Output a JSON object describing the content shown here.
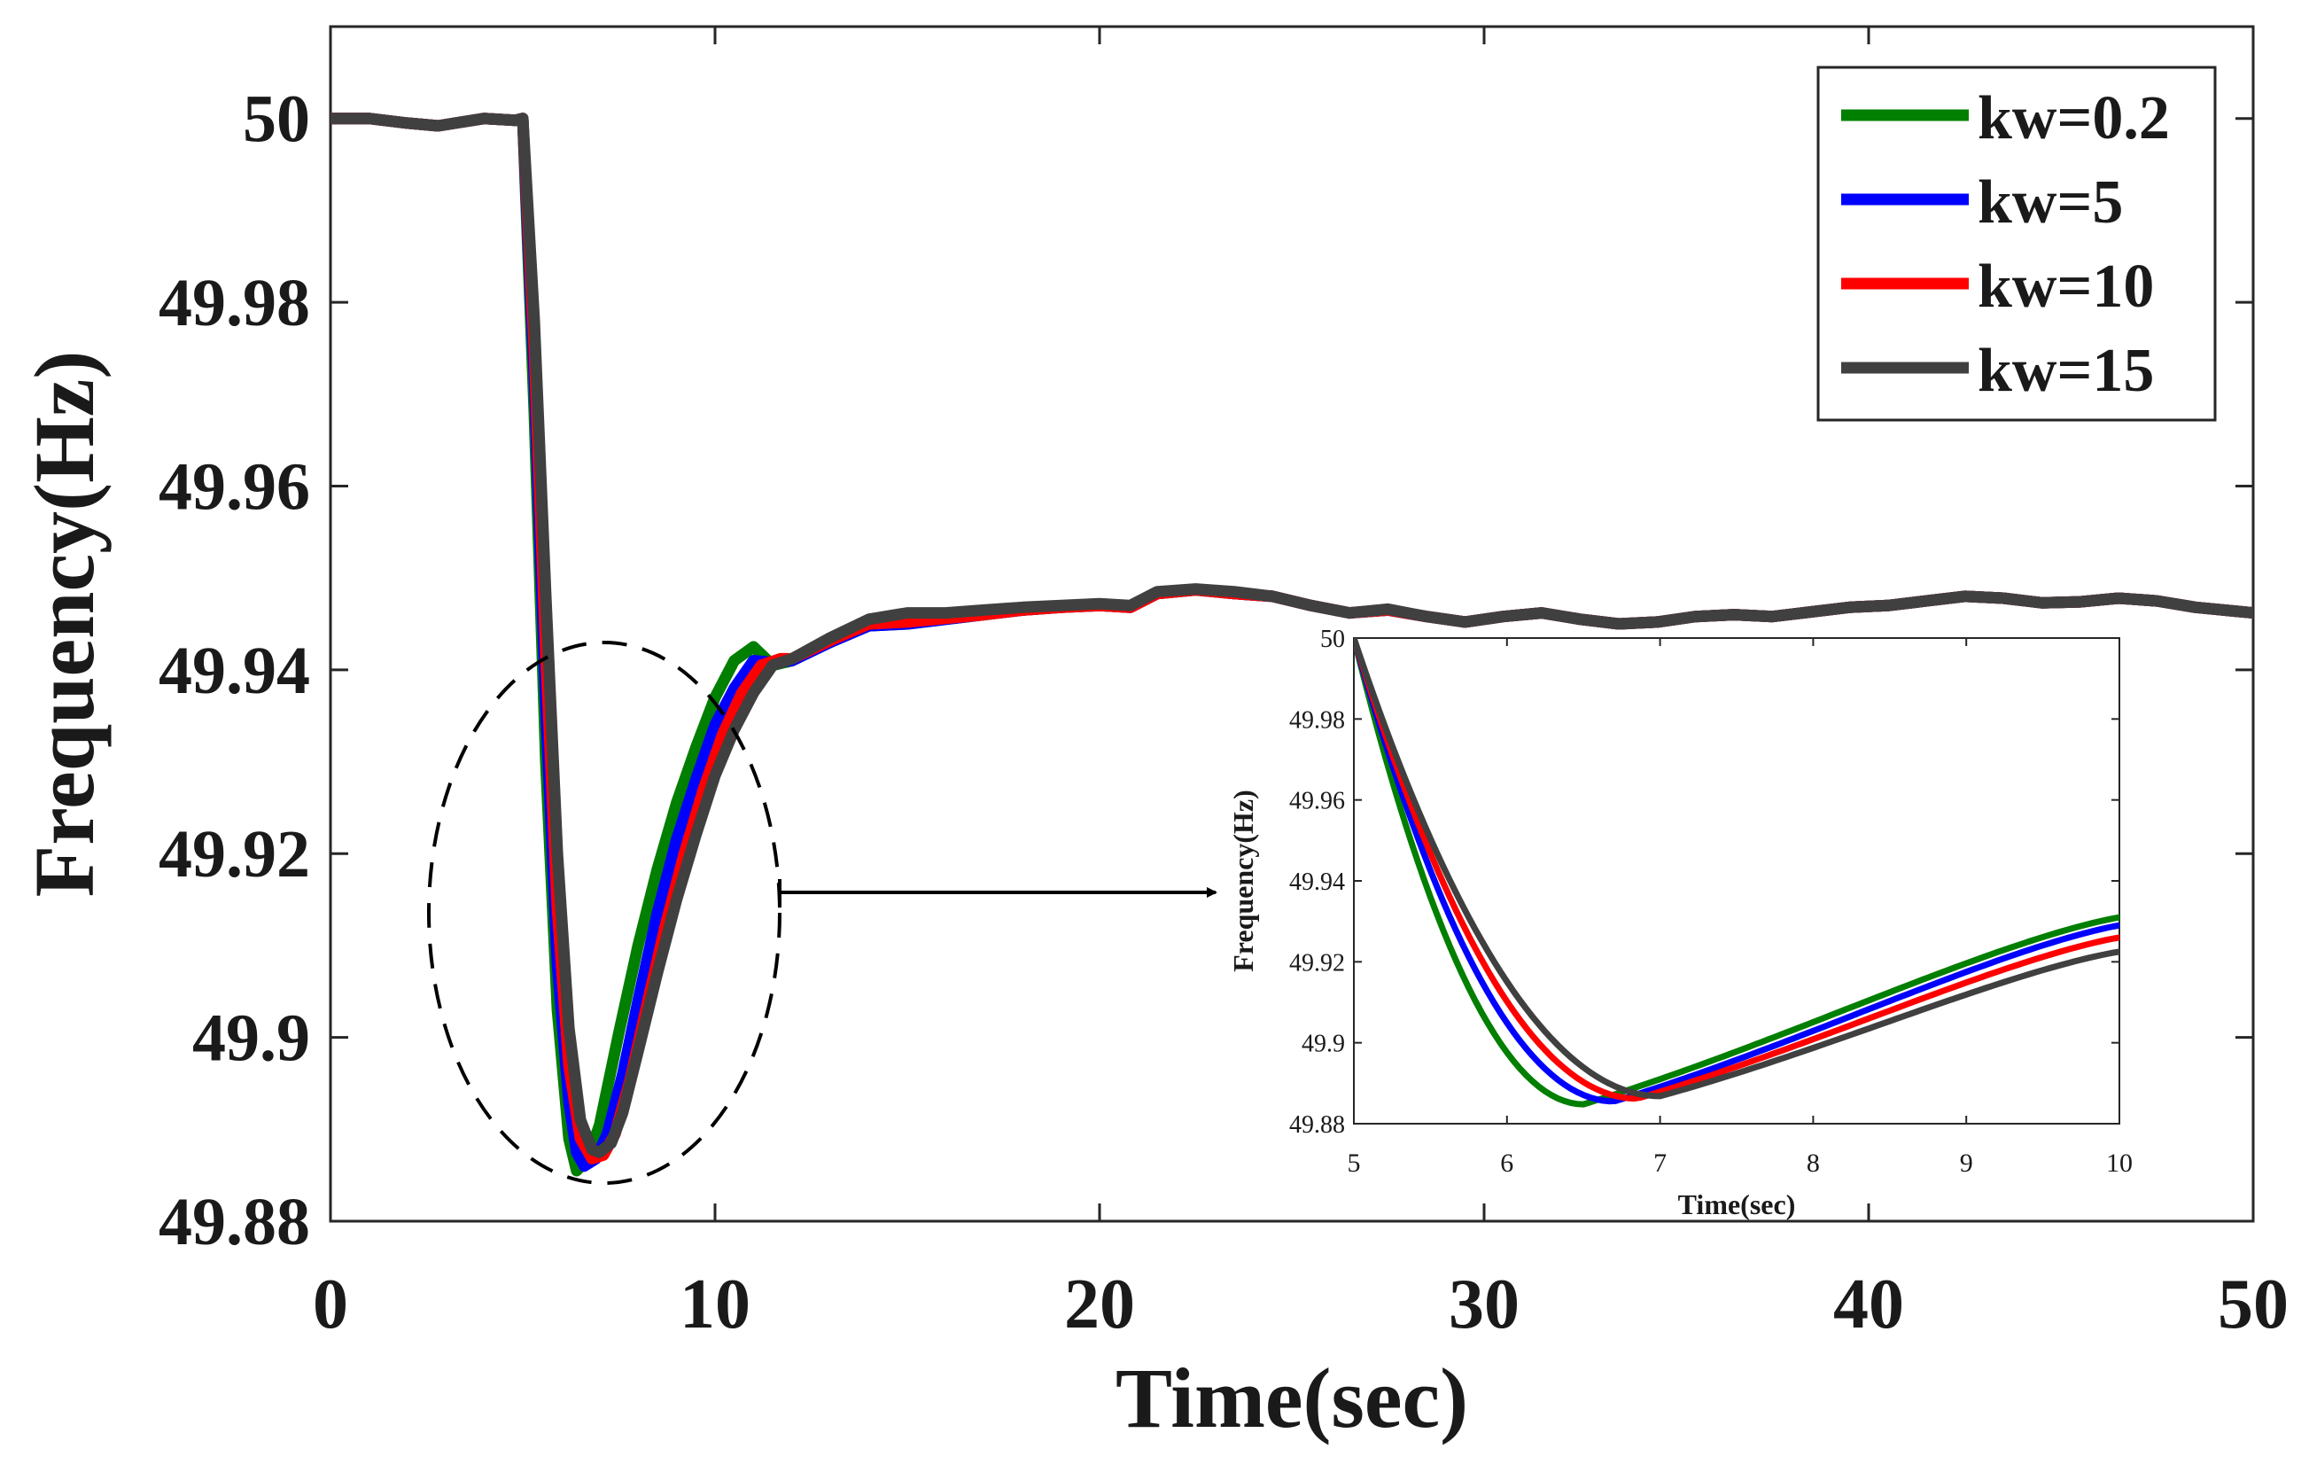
{
  "chart_data": [
    {
      "id": "main",
      "type": "line",
      "title": "",
      "xlabel": "Time(sec)",
      "ylabel": "Frequency(Hz)",
      "xlim": [
        0,
        50
      ],
      "ylim": [
        49.88,
        50.01
      ],
      "xticks": [
        0,
        10,
        20,
        30,
        40,
        50
      ],
      "yticks": [
        49.88,
        49.9,
        49.92,
        49.94,
        49.96,
        49.98,
        50
      ],
      "xtick_labels": [
        "0",
        "10",
        "20",
        "30",
        "40",
        "50"
      ],
      "ytick_labels": [
        "49.88",
        "49.9",
        "49.92",
        "49.94",
        "49.96",
        "49.98",
        "50"
      ],
      "legend_position": "top-right",
      "series": [
        {
          "name": "kw=0.2",
          "color": "#007f00",
          "dip_time": 6.4,
          "dip_value": 49.8855,
          "x": [
            0,
            1,
            2,
            2.8,
            4,
            4.8,
            5.0,
            5.3,
            5.6,
            5.9,
            6.2,
            6.4,
            6.7,
            7.0,
            7.5,
            8.0,
            8.5,
            9.0,
            9.5,
            10.0,
            10.5,
            11.0,
            11.5,
            12,
            13,
            14,
            15,
            16,
            17,
            18,
            19,
            20,
            20.8,
            21.5,
            22.5,
            23.5,
            24.5,
            25.5,
            26.5,
            27.5,
            28.5,
            29.5,
            30.5,
            31.5,
            32.5,
            33.5,
            34.5,
            35.5,
            36.5,
            37.5,
            38.5,
            39.5,
            40.5,
            41.5,
            42.5,
            43.5,
            44.5,
            45.5,
            46.5,
            47.5,
            48.5,
            49.5,
            50
          ],
          "y": [
            50,
            50,
            49.9995,
            49.9992,
            50,
            49.9998,
            50,
            49.968,
            49.93,
            49.903,
            49.889,
            49.8855,
            49.8868,
            49.8905,
            49.9005,
            49.91,
            49.9183,
            49.9255,
            49.9315,
            49.937,
            49.941,
            49.9425,
            49.9405,
            49.941,
            49.943,
            49.9448,
            49.945,
            49.9455,
            49.946,
            49.9465,
            49.9468,
            49.947,
            49.9468,
            49.9483,
            49.9487,
            49.9483,
            49.948,
            49.947,
            49.9462,
            49.9465,
            49.9458,
            49.9452,
            49.9458,
            49.9462,
            49.9455,
            49.945,
            49.9452,
            49.9458,
            49.946,
            49.9458,
            49.9463,
            49.9468,
            49.947,
            49.9475,
            49.948,
            49.9478,
            49.9473,
            49.9474,
            49.9478,
            49.9475,
            49.9468,
            49.9464,
            49.9462
          ]
        },
        {
          "name": "kw=5",
          "color": "#0000ff",
          "dip_time": 6.6,
          "dip_value": 49.886,
          "x": [
            0,
            1,
            2,
            2.8,
            4,
            4.8,
            5.0,
            5.3,
            5.6,
            5.9,
            6.2,
            6.4,
            6.6,
            6.9,
            7.2,
            7.6,
            8.0,
            8.5,
            9.0,
            9.5,
            10.0,
            10.5,
            11.0,
            11.5,
            12,
            13,
            14,
            15,
            16,
            17,
            18,
            19,
            20,
            20.8,
            21.5,
            22.5,
            23.5,
            24.5,
            25.5,
            26.5,
            27.5,
            28.5,
            29.5,
            30.5,
            31.5,
            32.5,
            33.5,
            34.5,
            35.5,
            36.5,
            37.5,
            38.5,
            39.5,
            40.5,
            41.5,
            42.5,
            43.5,
            44.5,
            45.5,
            46.5,
            47.5,
            48.5,
            49.5,
            50
          ],
          "y": [
            50,
            50,
            49.9995,
            49.9992,
            50,
            49.9998,
            50,
            49.972,
            49.936,
            49.908,
            49.893,
            49.8875,
            49.886,
            49.8868,
            49.8895,
            49.896,
            49.904,
            49.9135,
            49.9215,
            49.928,
            49.934,
            49.938,
            49.941,
            49.9408,
            49.941,
            49.943,
            49.9448,
            49.945,
            49.9455,
            49.946,
            49.9465,
            49.9468,
            49.947,
            49.9468,
            49.9483,
            49.9487,
            49.9483,
            49.948,
            49.947,
            49.9462,
            49.9465,
            49.9458,
            49.9452,
            49.9458,
            49.9462,
            49.9455,
            49.945,
            49.9452,
            49.9458,
            49.946,
            49.9458,
            49.9463,
            49.9468,
            49.947,
            49.9475,
            49.948,
            49.9478,
            49.9473,
            49.9474,
            49.9478,
            49.9475,
            49.9468,
            49.9464,
            49.9462
          ]
        },
        {
          "name": "kw=10",
          "color": "#ff0000",
          "dip_time": 6.8,
          "dip_value": 49.8868,
          "x": [
            0,
            1,
            2,
            2.8,
            4,
            4.8,
            5.0,
            5.3,
            5.6,
            5.9,
            6.2,
            6.5,
            6.8,
            7.1,
            7.4,
            7.8,
            8.2,
            8.7,
            9.2,
            9.7,
            10.2,
            10.7,
            11.2,
            11.7,
            12,
            13,
            14,
            15,
            16,
            17,
            18,
            19,
            20,
            20.8,
            21.5,
            22.5,
            23.5,
            24.5,
            25.5,
            26.5,
            27.5,
            28.5,
            29.5,
            30.5,
            31.5,
            32.5,
            33.5,
            34.5,
            35.5,
            36.5,
            37.5,
            38.5,
            39.5,
            40.5,
            41.5,
            42.5,
            43.5,
            44.5,
            45.5,
            46.5,
            47.5,
            48.5,
            49.5,
            50
          ],
          "y": [
            50,
            50,
            49.9995,
            49.9992,
            50,
            49.9998,
            50,
            49.975,
            49.942,
            49.914,
            49.897,
            49.889,
            49.8868,
            49.8872,
            49.8895,
            49.8955,
            49.903,
            49.912,
            49.92,
            49.927,
            49.933,
            49.9375,
            49.9405,
            49.9412,
            49.9412,
            49.9432,
            49.945,
            49.9452,
            49.9456,
            49.946,
            49.9465,
            49.9468,
            49.947,
            49.9468,
            49.9483,
            49.9487,
            49.9483,
            49.948,
            49.947,
            49.9462,
            49.9465,
            49.9458,
            49.9452,
            49.9458,
            49.9462,
            49.9455,
            49.945,
            49.9452,
            49.9458,
            49.946,
            49.9458,
            49.9463,
            49.9468,
            49.947,
            49.9475,
            49.948,
            49.9478,
            49.9473,
            49.9474,
            49.9478,
            49.9475,
            49.9468,
            49.9464,
            49.9462
          ]
        },
        {
          "name": "kw=15",
          "color": "#404040",
          "dip_time": 7.0,
          "dip_value": 49.8875,
          "x": [
            0,
            1,
            2,
            2.8,
            4,
            4.8,
            5.0,
            5.3,
            5.6,
            5.9,
            6.2,
            6.5,
            6.8,
            7.0,
            7.3,
            7.6,
            8.0,
            8.5,
            9.0,
            9.5,
            10.0,
            10.5,
            11.0,
            11.5,
            12,
            13,
            14,
            15,
            16,
            17,
            18,
            19,
            20,
            20.8,
            21.5,
            22.5,
            23.5,
            24.5,
            25.5,
            26.5,
            27.5,
            28.5,
            29.5,
            30.5,
            31.5,
            32.5,
            33.5,
            34.5,
            35.5,
            36.5,
            37.5,
            38.5,
            39.5,
            40.5,
            41.5,
            42.5,
            43.5,
            44.5,
            45.5,
            46.5,
            47.5,
            48.5,
            49.5,
            50
          ],
          "y": [
            50,
            50,
            49.9995,
            49.9992,
            50,
            49.9998,
            50,
            49.978,
            49.948,
            49.92,
            49.901,
            49.891,
            49.8878,
            49.8875,
            49.8885,
            49.8918,
            49.8985,
            49.907,
            49.915,
            49.922,
            49.9285,
            49.9335,
            49.9375,
            49.9405,
            49.9412,
            49.9435,
            49.9455,
            49.9462,
            49.9462,
            49.9465,
            49.9468,
            49.947,
            49.9472,
            49.947,
            49.9485,
            49.9488,
            49.9485,
            49.948,
            49.947,
            49.9462,
            49.9466,
            49.9458,
            49.9452,
            49.9458,
            49.9462,
            49.9455,
            49.945,
            49.9452,
            49.9458,
            49.946,
            49.9458,
            49.9463,
            49.9468,
            49.947,
            49.9475,
            49.948,
            49.9478,
            49.9473,
            49.9474,
            49.9478,
            49.9475,
            49.9468,
            49.9464,
            49.9462
          ]
        }
      ]
    },
    {
      "id": "inset",
      "type": "line",
      "title": "",
      "xlabel": "Time(sec)",
      "ylabel": "Frequency(Hz)",
      "xlim": [
        5,
        10
      ],
      "ylim": [
        49.88,
        50
      ],
      "xticks": [
        5,
        6,
        7,
        8,
        9,
        10
      ],
      "yticks": [
        49.88,
        49.9,
        49.92,
        49.94,
        49.96,
        49.98,
        50
      ],
      "xtick_labels": [
        "5",
        "6",
        "7",
        "8",
        "9",
        "10"
      ],
      "ytick_labels": [
        "49.88",
        "49.9",
        "49.92",
        "49.94",
        "49.96",
        "49.98",
        "50"
      ],
      "series": [
        {
          "name": "kw=0.2",
          "color": "#007f00",
          "dip_time": 6.5,
          "dip_value": 49.8848,
          "end_value": 49.931
        },
        {
          "name": "kw=5",
          "color": "#0000ff",
          "dip_time": 6.7,
          "dip_value": 49.8855,
          "end_value": 49.929
        },
        {
          "name": "kw=10",
          "color": "#ff0000",
          "dip_time": 6.85,
          "dip_value": 49.8862,
          "end_value": 49.926
        },
        {
          "name": "kw=15",
          "color": "#404040",
          "dip_time": 7.0,
          "dip_value": 49.8868,
          "end_value": 49.9225
        }
      ]
    }
  ]
}
